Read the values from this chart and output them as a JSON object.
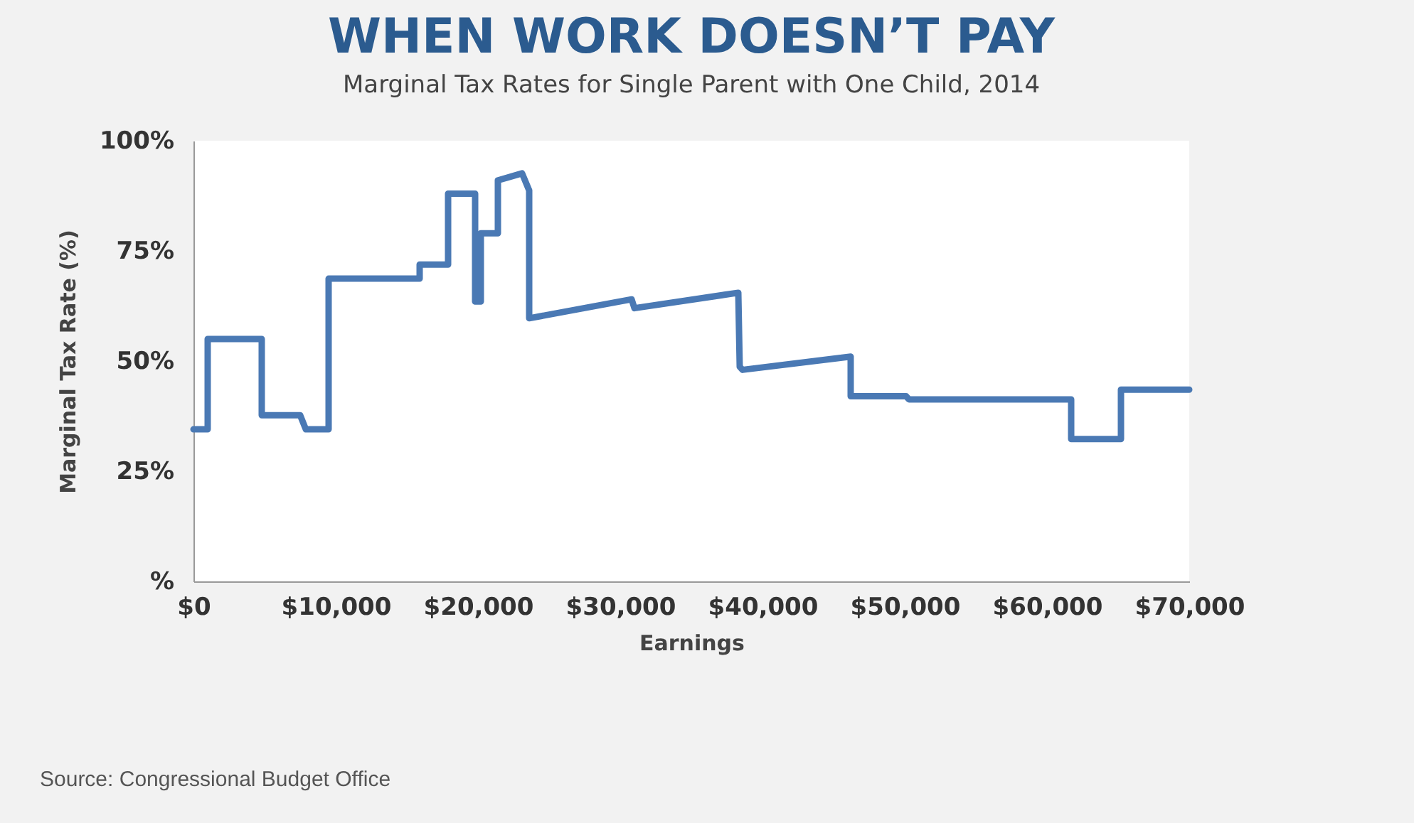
{
  "chart_data": {
    "type": "line",
    "title": "WHEN WORK DOESN’T PAY",
    "subtitle": "Marginal Tax Rates for Single Parent with One Child, 2014",
    "xlabel": "Earnings",
    "ylabel": "Marginal Tax Rate (%)",
    "x": [
      0,
      1000,
      1000,
      4800,
      4800,
      7500,
      7900,
      9500,
      9500,
      15900,
      15900,
      17900,
      17900,
      19800,
      19800,
      20200,
      20200,
      21400,
      21400,
      23100,
      23600,
      23600,
      30800,
      31000,
      38300,
      38400,
      38600,
      46200,
      46200,
      50100,
      50300,
      61700,
      61700,
      65200,
      65200,
      70000
    ],
    "series": [
      {
        "color": "#4a79b4",
        "values": [
          34.5,
          34.5,
          55,
          55,
          37.7,
          37.7,
          34.5,
          34.5,
          68.7,
          68.7,
          71.9,
          71.9,
          88,
          88,
          63.5,
          63.5,
          79,
          79,
          91,
          92.6,
          88.7,
          59.7,
          64,
          62,
          65.5,
          48.7,
          48,
          51,
          42,
          42,
          41.3,
          41.3,
          32.3,
          32.3,
          43.5,
          43.5
        ]
      }
    ],
    "xlim": [
      0,
      70000
    ],
    "ylim": [
      0,
      100
    ],
    "xticks": [
      {
        "value": 0,
        "label": "$0"
      },
      {
        "value": 10000,
        "label": "$10,000"
      },
      {
        "value": 20000,
        "label": "$20,000"
      },
      {
        "value": 30000,
        "label": "$30,000"
      },
      {
        "value": 40000,
        "label": "$40,000"
      },
      {
        "value": 50000,
        "label": "$50,000"
      },
      {
        "value": 60000,
        "label": "$60,000"
      },
      {
        "value": 70000,
        "label": "$70,000"
      }
    ],
    "yticks": [
      {
        "value": 0,
        "label": "%"
      },
      {
        "value": 25,
        "label": "25%"
      },
      {
        "value": 50,
        "label": "50%"
      },
      {
        "value": 75,
        "label": "75%"
      },
      {
        "value": 100,
        "label": "100%"
      }
    ],
    "grid": false,
    "marker": "none",
    "line_style": "solid",
    "annotations": [
      "Source: Congressional Budget Office"
    ]
  }
}
